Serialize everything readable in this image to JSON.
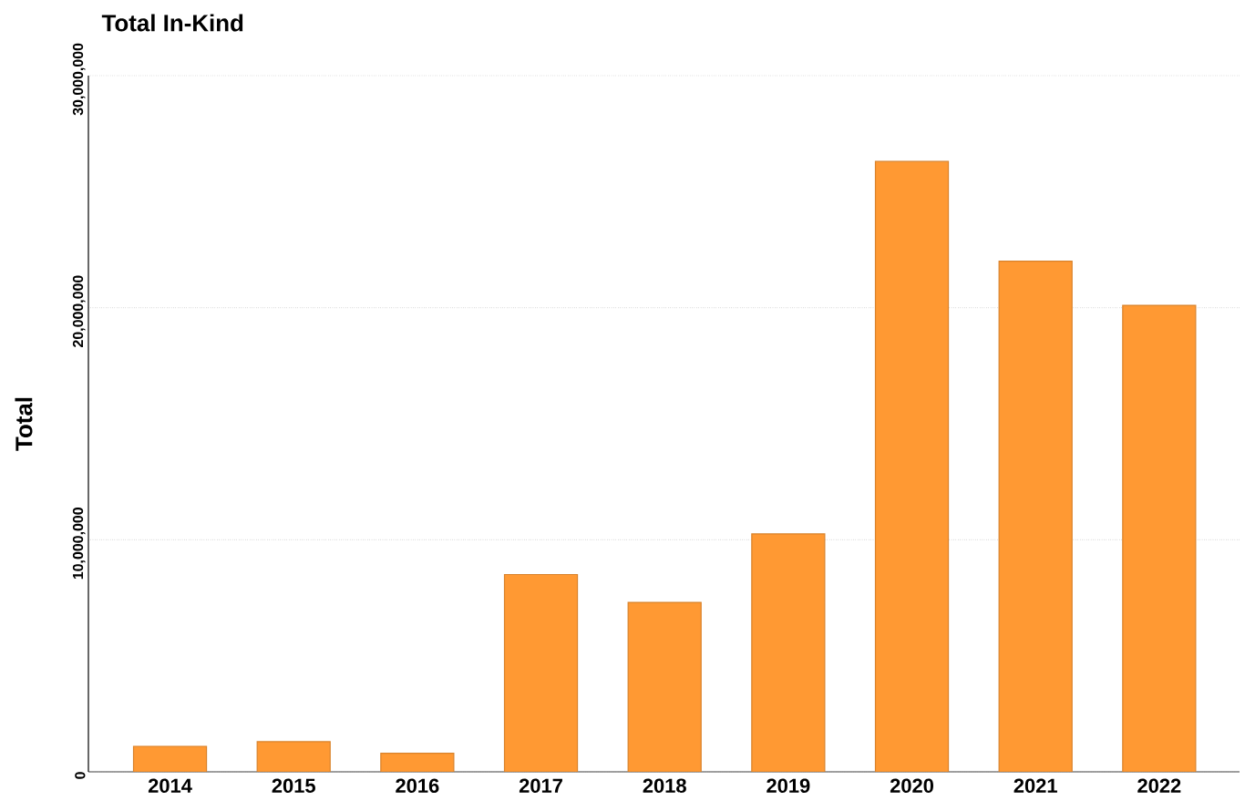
{
  "chart_data": {
    "type": "bar",
    "title": "Total In-Kind",
    "ylabel": "Total",
    "categories": [
      "2014",
      "2015",
      "2016",
      "2017",
      "2018",
      "2019",
      "2020",
      "2021",
      "2022"
    ],
    "values": [
      1100000,
      1300000,
      800000,
      8500000,
      7300000,
      10250000,
      26300000,
      22000000,
      20100000
    ],
    "color": "#ff9933",
    "ylim": [
      0,
      30000000
    ],
    "yticks": [
      {
        "value": 0,
        "label": "0"
      },
      {
        "value": 10000000,
        "label": "10,000,000"
      },
      {
        "value": 20000000,
        "label": "20,000,000"
      },
      {
        "value": 30000000,
        "label": "30,000,000"
      }
    ],
    "grid": "y"
  }
}
